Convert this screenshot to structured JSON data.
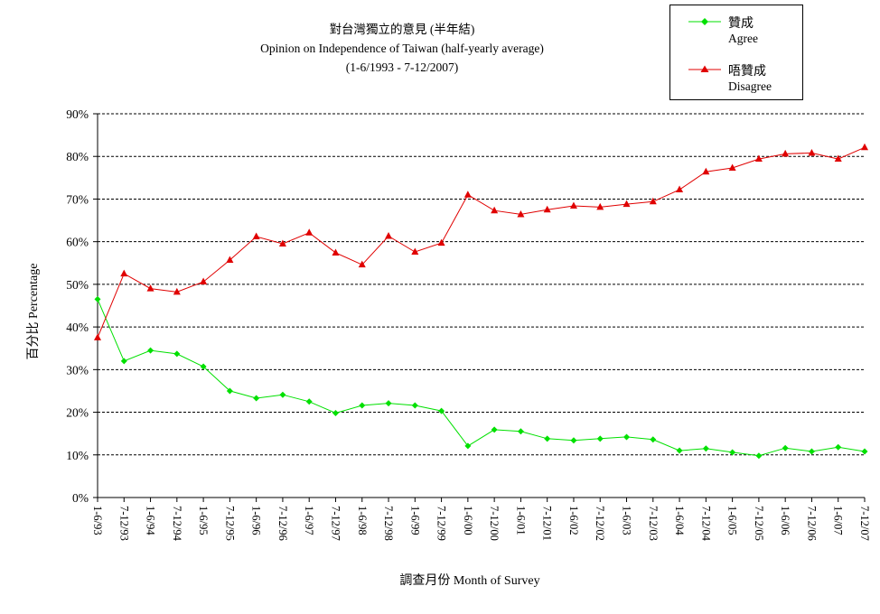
{
  "chart_data": {
    "type": "line",
    "title": "對台灣獨立的意見 (半年結)",
    "subtitle": "Opinion on Independence of Taiwan  (half-yearly average)",
    "period": "(1-6/1993 - 7-12/2007)",
    "xlabel": "調查月份 Month of Survey",
    "ylabel": "百分比 Percentage",
    "ylim": [
      0,
      90
    ],
    "yticks": [
      "0%",
      "10%",
      "20%",
      "30%",
      "40%",
      "50%",
      "60%",
      "70%",
      "80%",
      "90%"
    ],
    "grid": true,
    "legend_placement": "top-right",
    "categories": [
      "1-6/93",
      "7-12/93",
      "1-6/94",
      "7-12/94",
      "1-6/95",
      "7-12/95",
      "1-6/96",
      "7-12/96",
      "1-6/97",
      "7-12/97",
      "1-6/98",
      "7-12/98",
      "1-6/99",
      "7-12/99",
      "1-6/00",
      "7-12/00",
      "1-6/01",
      "7-12/01",
      "1-6/02",
      "7-12/02",
      "1-6/03",
      "7-12/03",
      "1-6/04",
      "7-12/04",
      "1-6/05",
      "7-12/05",
      "1-6/06",
      "7-12/06",
      "1-6/07",
      "7-12/07"
    ],
    "series": [
      {
        "name": "贊成",
        "name_en": "Agree",
        "color": "#00e000",
        "marker": "diamond",
        "values": [
          46.5,
          32.0,
          34.5,
          33.7,
          30.7,
          25.0,
          23.3,
          24.1,
          22.5,
          19.8,
          21.6,
          22.1,
          21.6,
          20.3,
          12.1,
          15.9,
          15.5,
          13.8,
          13.4,
          13.8,
          14.2,
          13.6,
          11.0,
          11.5,
          10.6,
          9.8,
          11.6,
          10.8,
          11.8,
          10.8
        ]
      },
      {
        "name": "唔贊成",
        "name_en": "Disagree",
        "color": "#e00000",
        "marker": "triangle",
        "values": [
          37.5,
          52.5,
          49.0,
          48.2,
          50.6,
          55.7,
          61.2,
          59.5,
          62.1,
          57.4,
          54.6,
          61.3,
          57.6,
          59.7,
          71.0,
          67.3,
          66.4,
          67.5,
          68.4,
          68.1,
          68.8,
          69.4,
          72.2,
          76.4,
          77.3,
          79.4,
          80.6,
          80.8,
          79.4,
          82.1
        ]
      }
    ]
  }
}
